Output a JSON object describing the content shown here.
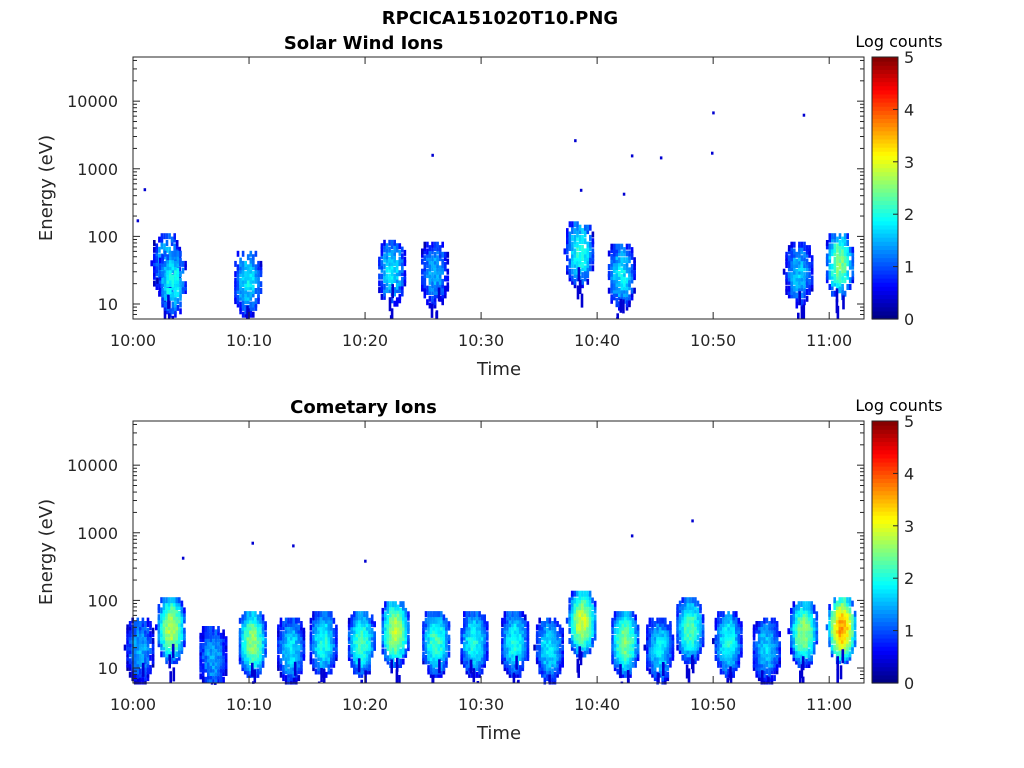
{
  "figure_title": "RPCICA151020T10.PNG",
  "chart_data": [
    {
      "type": "heatmap",
      "title": "Solar Wind Ions",
      "xlabel": "Time",
      "ylabel": "Energy (eV)",
      "x_ticks": [
        "10:00",
        "10:10",
        "10:20",
        "10:30",
        "10:40",
        "10:50",
        "11:00"
      ],
      "x_range_minutes": [
        0,
        63
      ],
      "y_ticks": [
        "10",
        "100",
        "1000",
        "10000"
      ],
      "y_scale": "log",
      "y_range": [
        6,
        45000
      ],
      "colorbar": {
        "label": "Log counts",
        "ticks": [
          "0",
          "1",
          "2",
          "3",
          "4",
          "5"
        ],
        "range": [
          0,
          5
        ],
        "colormap": "jet"
      },
      "blobs": [
        {
          "t": 2.8,
          "e": 40,
          "level": 1.6
        },
        {
          "t": 3.3,
          "e": 22,
          "level": 2.0
        },
        {
          "t": 9.8,
          "e": 22,
          "level": 1.8
        },
        {
          "t": 22.2,
          "e": 32,
          "level": 1.8
        },
        {
          "t": 25.9,
          "e": 30,
          "level": 1.5
        },
        {
          "t": 38.4,
          "e": 60,
          "level": 2.0
        },
        {
          "t": 42.0,
          "e": 28,
          "level": 1.8
        },
        {
          "t": 57.3,
          "e": 30,
          "level": 1.6
        },
        {
          "t": 60.8,
          "e": 40,
          "level": 2.5
        }
      ],
      "points": [
        {
          "t": 0.4,
          "e": 170
        },
        {
          "t": 1.0,
          "e": 490
        },
        {
          "t": 25.8,
          "e": 1580
        },
        {
          "t": 38.1,
          "e": 2600
        },
        {
          "t": 38.6,
          "e": 480
        },
        {
          "t": 42.3,
          "e": 420
        },
        {
          "t": 43.0,
          "e": 1550
        },
        {
          "t": 45.5,
          "e": 1450
        },
        {
          "t": 49.9,
          "e": 1700
        },
        {
          "t": 50.0,
          "e": 6700
        },
        {
          "t": 57.8,
          "e": 6200
        }
      ]
    },
    {
      "type": "heatmap",
      "title": "Cometary Ions",
      "xlabel": "Time",
      "ylabel": "Energy (eV)",
      "x_ticks": [
        "10:00",
        "10:10",
        "10:20",
        "10:30",
        "10:40",
        "10:50",
        "11:00"
      ],
      "x_range_minutes": [
        0,
        63
      ],
      "y_ticks": [
        "10",
        "100",
        "1000",
        "10000"
      ],
      "y_scale": "log",
      "y_range": [
        6,
        45000
      ],
      "colorbar": {
        "label": "Log counts",
        "ticks": [
          "0",
          "1",
          "2",
          "3",
          "4",
          "5"
        ],
        "range": [
          0,
          5
        ],
        "colormap": "jet"
      },
      "blobs": [
        {
          "t": 0.5,
          "e": 20,
          "level": 1.5
        },
        {
          "t": 3.2,
          "e": 40,
          "level": 2.8
        },
        {
          "t": 6.8,
          "e": 15,
          "level": 1.5
        },
        {
          "t": 10.2,
          "e": 25,
          "level": 2.6
        },
        {
          "t": 13.5,
          "e": 20,
          "level": 1.8
        },
        {
          "t": 16.3,
          "e": 25,
          "level": 2.0
        },
        {
          "t": 19.6,
          "e": 25,
          "level": 2.2
        },
        {
          "t": 22.5,
          "e": 35,
          "level": 2.8
        },
        {
          "t": 26.0,
          "e": 25,
          "level": 2.2
        },
        {
          "t": 29.3,
          "e": 25,
          "level": 2.0
        },
        {
          "t": 32.8,
          "e": 25,
          "level": 2.0
        },
        {
          "t": 35.8,
          "e": 20,
          "level": 1.8
        },
        {
          "t": 38.6,
          "e": 50,
          "level": 2.9
        },
        {
          "t": 42.3,
          "e": 25,
          "level": 2.5
        },
        {
          "t": 45.3,
          "e": 20,
          "level": 1.8
        },
        {
          "t": 47.9,
          "e": 40,
          "level": 2.3
        },
        {
          "t": 51.2,
          "e": 25,
          "level": 2.0
        },
        {
          "t": 54.5,
          "e": 20,
          "level": 1.7
        },
        {
          "t": 57.7,
          "e": 35,
          "level": 2.6
        },
        {
          "t": 61.0,
          "e": 40,
          "level": 3.6
        }
      ],
      "points": [
        {
          "t": 10.3,
          "e": 700
        },
        {
          "t": 13.8,
          "e": 640
        },
        {
          "t": 48.2,
          "e": 1500
        },
        {
          "t": 43.0,
          "e": 900
        },
        {
          "t": 4.3,
          "e": 420
        },
        {
          "t": 20.0,
          "e": 380
        }
      ]
    }
  ]
}
